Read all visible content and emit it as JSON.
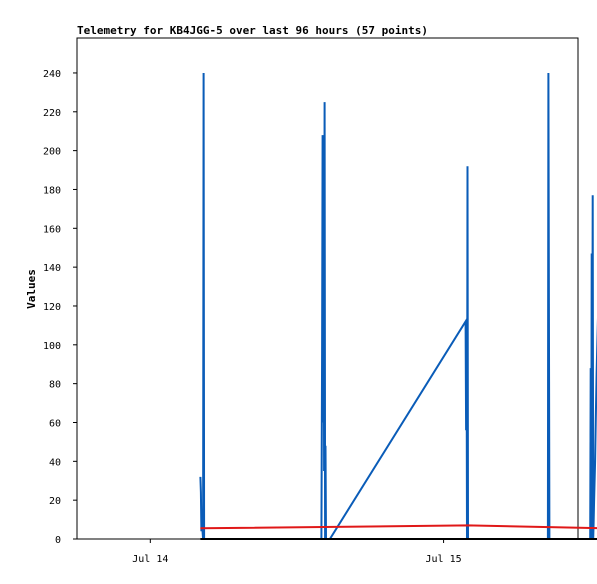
{
  "chart_data": {
    "type": "line",
    "title": "Telemetry for KB4JGG-5 over last 96 hours (57 points)",
    "xlabel": "",
    "ylabel": "Values",
    "ylim": [
      0,
      258
    ],
    "yticks": [
      0,
      20,
      40,
      60,
      80,
      100,
      120,
      140,
      160,
      180,
      200,
      220,
      240
    ],
    "xlim": [
      -0.3,
      1.75
    ],
    "xticks": [
      {
        "value": 0,
        "label": "Jul 14"
      },
      {
        "value": 1.2,
        "label": "Jul 15"
      }
    ],
    "grid": false,
    "legend": "none",
    "series": [
      {
        "color": "#0a5cb8",
        "points": [
          [
            0.205,
            32
          ],
          [
            0.207,
            24
          ],
          [
            0.209,
            4
          ],
          [
            0.212,
            7
          ],
          [
            0.216,
            0
          ],
          [
            0.218,
            240
          ],
          [
            0.22,
            0
          ],
          [
            0.7,
            0
          ],
          [
            0.703,
            97
          ],
          [
            0.705,
            208
          ],
          [
            0.707,
            60
          ],
          [
            0.709,
            174
          ],
          [
            0.711,
            35
          ],
          [
            0.713,
            225
          ],
          [
            0.715,
            0
          ],
          [
            0.717,
            48
          ],
          [
            0.719,
            0
          ],
          [
            0.735,
            0
          ],
          [
            1.29,
            112
          ],
          [
            1.292,
            56
          ],
          [
            1.294,
            96
          ],
          [
            1.296,
            0
          ],
          [
            1.298,
            192
          ],
          [
            1.3,
            0
          ],
          [
            1.627,
            0
          ],
          [
            1.629,
            240
          ],
          [
            1.631,
            121
          ],
          [
            1.633,
            0
          ],
          [
            1.8,
            0
          ],
          [
            1.802,
            88
          ],
          [
            1.804,
            0
          ],
          [
            1.806,
            147
          ],
          [
            1.808,
            30
          ],
          [
            1.81,
            177
          ],
          [
            1.812,
            0
          ],
          [
            1.814,
            8
          ],
          [
            1.816,
            20
          ],
          [
            1.82,
            40
          ],
          [
            1.823,
            62
          ],
          [
            1.826,
            85
          ],
          [
            1.829,
            100
          ],
          [
            1.832,
            114
          ],
          [
            1.835,
            128
          ],
          [
            1.837,
            65
          ],
          [
            1.839,
            20
          ],
          [
            1.841,
            0
          ],
          [
            1.843,
            30
          ],
          [
            1.845,
            104
          ],
          [
            1.847,
            0
          ],
          [
            1.849,
            208
          ],
          [
            1.851,
            0
          ]
        ]
      },
      {
        "color": "#e01818",
        "points": [
          [
            0.205,
            5.5
          ],
          [
            1.3,
            7
          ],
          [
            1.851,
            5.5
          ]
        ]
      },
      {
        "color": "#000000",
        "points": [
          [
            0.205,
            0
          ],
          [
            1.851,
            0
          ]
        ]
      }
    ]
  }
}
